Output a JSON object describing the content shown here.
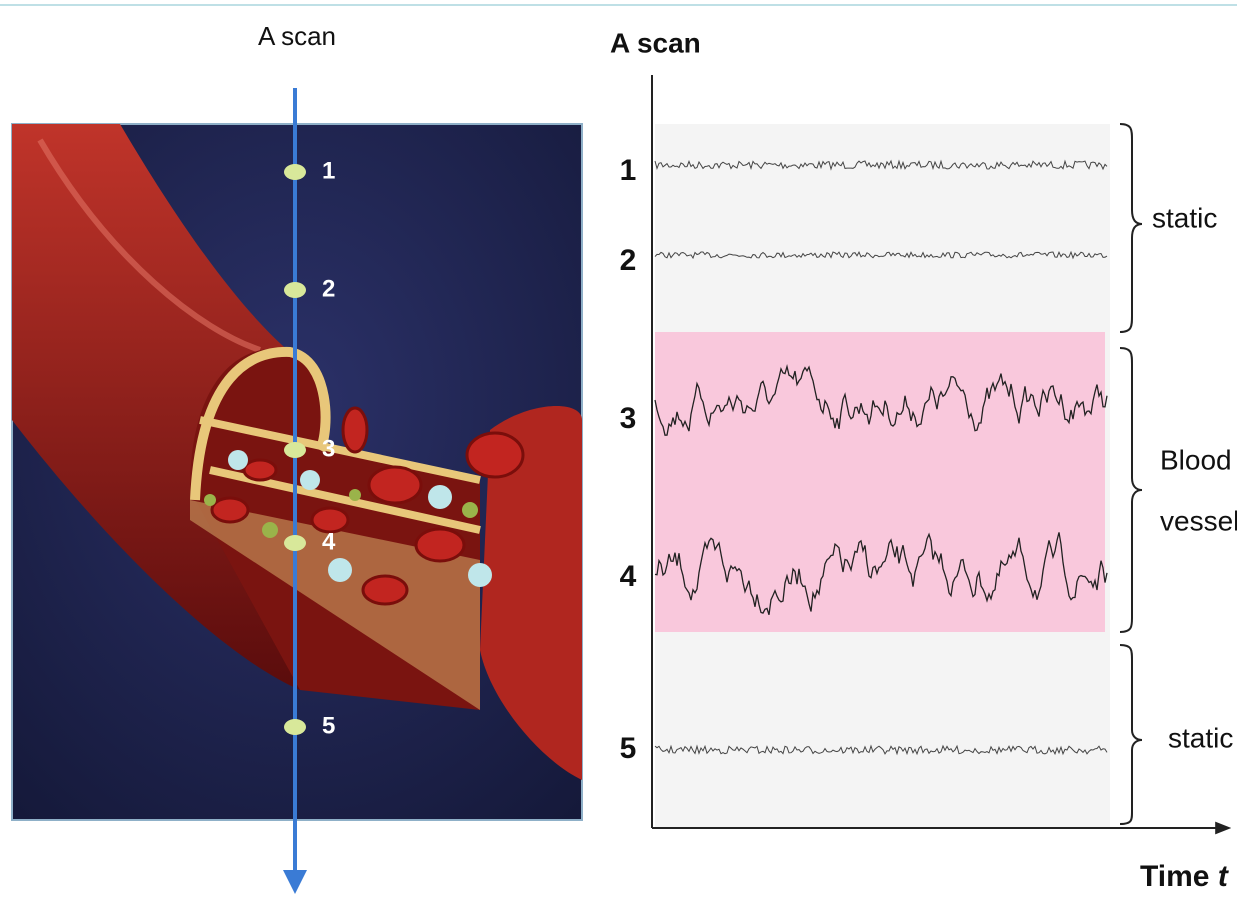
{
  "left_panel": {
    "title": "A scan",
    "points": [
      "1",
      "2",
      "3",
      "4",
      "5"
    ]
  },
  "right_panel": {
    "title": "A scan",
    "rows": [
      "1",
      "2",
      "3",
      "4",
      "5"
    ],
    "annotations": [
      {
        "lines": [
          "static"
        ]
      },
      {
        "lines": [
          "Blood",
          "vessel"
        ]
      },
      {
        "lines": [
          "static"
        ]
      }
    ],
    "x_axis_label": "Time",
    "x_axis_variable": "t"
  }
}
